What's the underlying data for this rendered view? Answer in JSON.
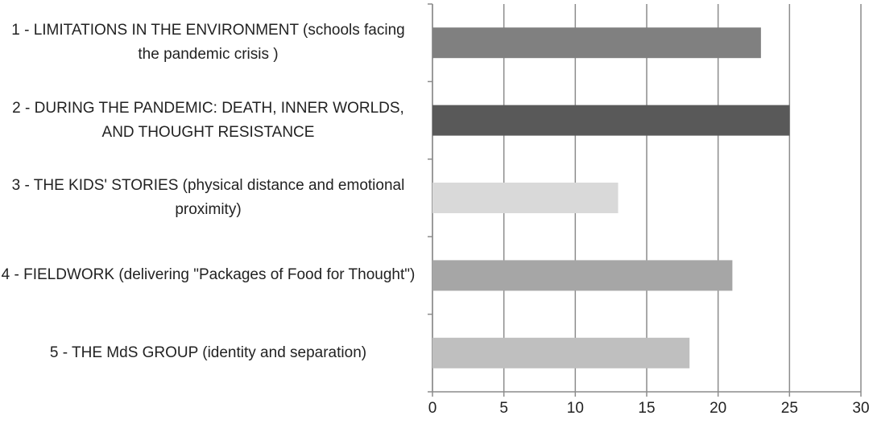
{
  "chart_data": {
    "type": "bar",
    "orientation": "horizontal",
    "categories": [
      "1 - LIMITATIONS IN THE ENVIRONMENT (schools facing the pandemic crisis )",
      "2 - DURING THE PANDEMIC: DEATH, INNER WORLDS, AND THOUGHT RESISTANCE",
      "3 - THE KIDS' STORIES (physical distance and emotional proximity)",
      "4 - FIELDWORK (delivering \"Packages of Food for Thought\")",
      "5 - THE MdS GROUP (identity and separation)"
    ],
    "values": [
      23,
      25,
      13,
      21,
      18
    ],
    "colors": [
      "#808080",
      "#595959",
      "#d9d9d9",
      "#a6a6a6",
      "#bfbfbf"
    ],
    "xlim": [
      0,
      30
    ],
    "xticks": [
      0,
      5,
      10,
      15,
      20,
      25,
      30
    ],
    "grid": true
  }
}
